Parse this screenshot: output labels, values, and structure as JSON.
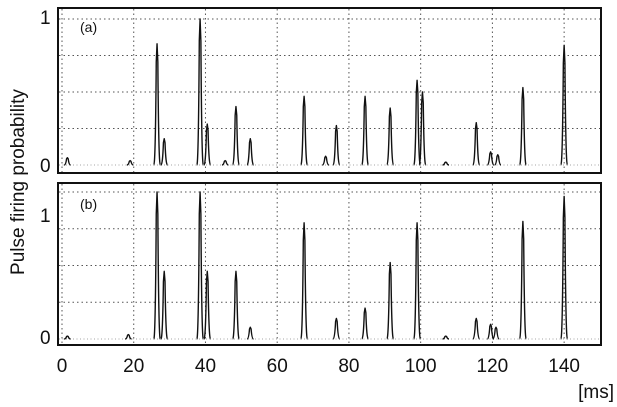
{
  "chart_data": {
    "type": "line",
    "ylabel": "Pulse firing probability",
    "xunit": "[ms]",
    "x_ticks": [
      0,
      20,
      40,
      60,
      80,
      100,
      120,
      140
    ],
    "y_ticks": [
      0,
      1
    ],
    "xlim": [
      0,
      150
    ],
    "ylim": [
      0,
      1
    ],
    "grid": true,
    "panels": [
      {
        "tag": "(a)",
        "peaks": [
          {
            "x": 1.5,
            "y": 0.05
          },
          {
            "x": 19.0,
            "y": 0.03
          },
          {
            "x": 26.5,
            "y": 0.83
          },
          {
            "x": 28.5,
            "y": 0.18
          },
          {
            "x": 38.5,
            "y": 1.0
          },
          {
            "x": 40.5,
            "y": 0.28
          },
          {
            "x": 45.5,
            "y": 0.03
          },
          {
            "x": 48.5,
            "y": 0.4
          },
          {
            "x": 52.5,
            "y": 0.18
          },
          {
            "x": 67.5,
            "y": 0.47
          },
          {
            "x": 73.5,
            "y": 0.06
          },
          {
            "x": 76.5,
            "y": 0.27
          },
          {
            "x": 84.5,
            "y": 0.47
          },
          {
            "x": 91.5,
            "y": 0.39
          },
          {
            "x": 99.0,
            "y": 0.58
          },
          {
            "x": 100.5,
            "y": 0.5
          },
          {
            "x": 107.0,
            "y": 0.02
          },
          {
            "x": 115.5,
            "y": 0.29
          },
          {
            "x": 119.5,
            "y": 0.09
          },
          {
            "x": 121.5,
            "y": 0.07
          },
          {
            "x": 128.5,
            "y": 0.53
          },
          {
            "x": 140.0,
            "y": 0.82
          }
        ]
      },
      {
        "tag": "(b)",
        "peaks": [
          {
            "x": 1.5,
            "y": 0.02
          },
          {
            "x": 18.5,
            "y": 0.03
          },
          {
            "x": 26.5,
            "y": 1.0
          },
          {
            "x": 28.5,
            "y": 0.46
          },
          {
            "x": 38.5,
            "y": 1.0
          },
          {
            "x": 40.5,
            "y": 0.46
          },
          {
            "x": 48.5,
            "y": 0.46
          },
          {
            "x": 52.5,
            "y": 0.08
          },
          {
            "x": 67.5,
            "y": 0.79
          },
          {
            "x": 76.5,
            "y": 0.14
          },
          {
            "x": 84.5,
            "y": 0.21
          },
          {
            "x": 91.5,
            "y": 0.52
          },
          {
            "x": 99.0,
            "y": 0.79
          },
          {
            "x": 107.0,
            "y": 0.02
          },
          {
            "x": 115.5,
            "y": 0.14
          },
          {
            "x": 119.5,
            "y": 0.1
          },
          {
            "x": 121.0,
            "y": 0.08
          },
          {
            "x": 128.5,
            "y": 0.8
          },
          {
            "x": 140.0,
            "y": 0.97
          }
        ]
      }
    ]
  }
}
